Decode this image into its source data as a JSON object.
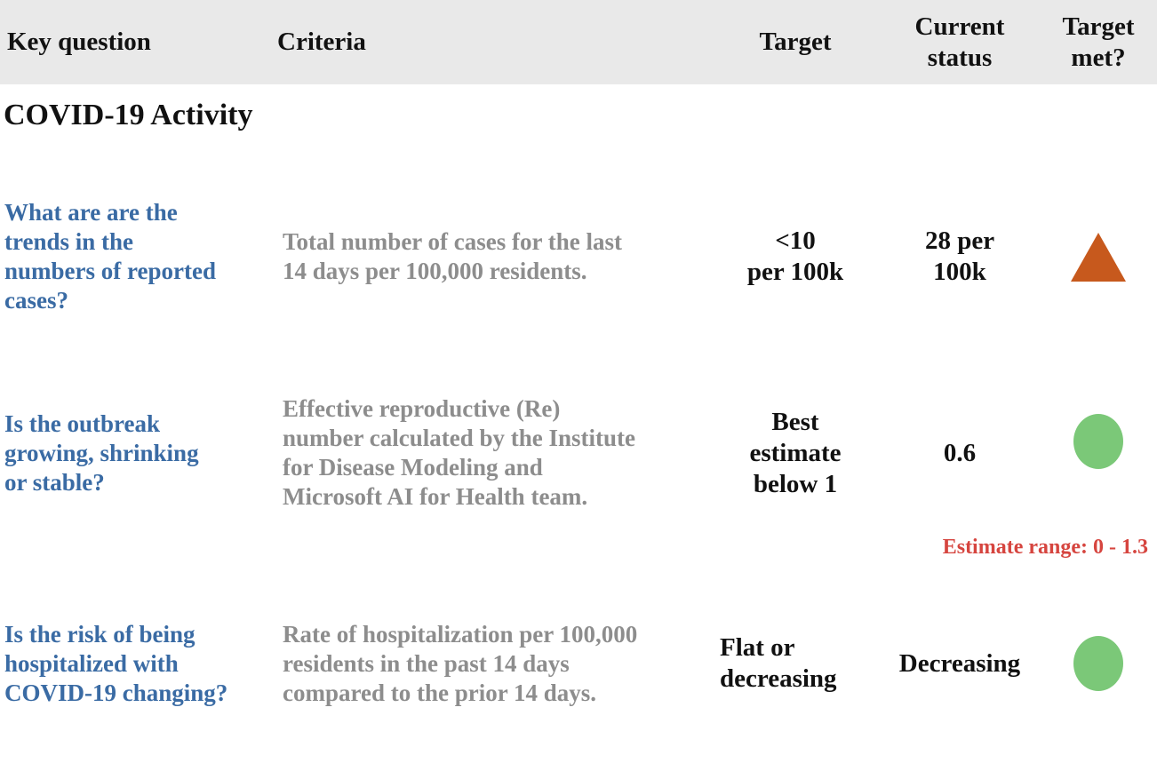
{
  "colors": {
    "header-bg": "#e9e9e9",
    "question-blue": "#3a6ba4",
    "criteria-gray": "#8d8d8d",
    "triangle-orange": "#c7591d",
    "circle-green": "#7bc878",
    "note-red": "#d6453f"
  },
  "table": {
    "headers": [
      "Key question",
      "Criteria",
      "Target",
      "Current\nstatus",
      "Target\nmet?"
    ],
    "section_title": "COVID-19 Activity",
    "rows": [
      {
        "question": "What are are the\ntrends in the\nnumbers of reported\ncases?",
        "criteria": "Total number of cases for the last\n14 days per 100,000 residents.",
        "target": "<10\nper 100k",
        "status": "28 per\n100k",
        "indicator": "triangle-up"
      },
      {
        "question": "Is the outbreak\ngrowing, shrinking\nor stable?",
        "criteria": "Effective reproductive (Re)\nnumber calculated by the Institute\nfor Disease Modeling and\nMicrosoft AI for Health team.",
        "target": "Best\nestimate\nbelow 1",
        "status": "0.6",
        "indicator": "circle",
        "note": "Estimate range: 0 - 1.3"
      },
      {
        "question": "Is the risk of being\nhospitalized with\nCOVID-19 changing?",
        "criteria": "Rate of hospitalization per 100,000\nresidents in the past 14 days\ncompared to the prior 14 days.",
        "target": "Flat or\ndecreasing",
        "status": "Decreasing",
        "indicator": "circle"
      }
    ]
  }
}
